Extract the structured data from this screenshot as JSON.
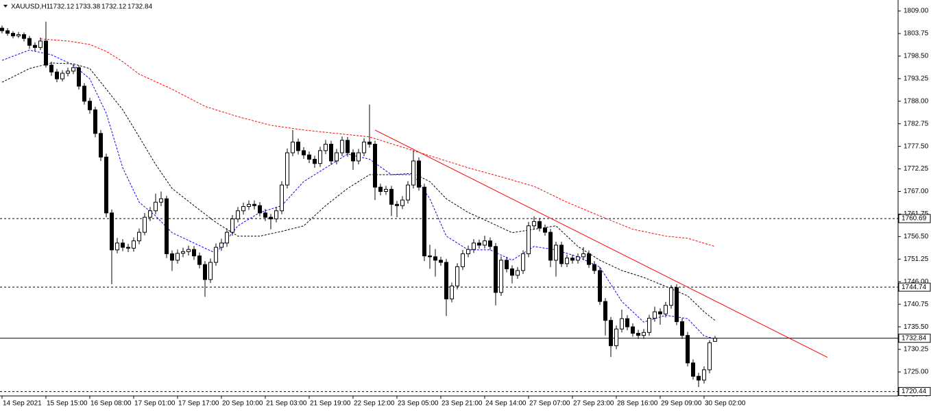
{
  "header": {
    "symbol": "XAUUSD,H1",
    "ohlc": [
      1732.12,
      1733.38,
      1732.12,
      1732.84
    ]
  },
  "chart_data": {
    "type": "candlestick",
    "categories": [
      "14 Sep 2021",
      null,
      null,
      null,
      null,
      null,
      null,
      null,
      "15 Sep 15:00",
      null,
      null,
      null,
      null,
      null,
      null,
      null,
      "16 Sep 08:00",
      null,
      null,
      null,
      null,
      null,
      null,
      null,
      "17 Sep 01:00",
      null,
      null,
      null,
      null,
      null,
      null,
      null,
      "17 Sep 17:00",
      null,
      null,
      null,
      null,
      null,
      null,
      null,
      "20 Sep 10:00",
      null,
      null,
      null,
      null,
      null,
      null,
      null,
      "21 Sep 03:00",
      null,
      null,
      null,
      null,
      null,
      null,
      null,
      "21 Sep 19:00",
      null,
      null,
      null,
      null,
      null,
      null,
      null,
      "22 Sep 12:00",
      null,
      null,
      null,
      null,
      null,
      null,
      null,
      "23 Sep 05:00",
      null,
      null,
      null,
      null,
      null,
      null,
      null,
      "23 Sep 21:00",
      null,
      null,
      null,
      null,
      null,
      null,
      null,
      "24 Sep 14:00",
      null,
      null,
      null,
      null,
      null,
      null,
      null,
      "27 Sep 07:00",
      null,
      null,
      null,
      null,
      null,
      null,
      null,
      "27 Sep 23:00",
      null,
      null,
      null,
      null,
      null,
      null,
      null,
      "28 Sep 16:00",
      null,
      null,
      null,
      null,
      null,
      null,
      null,
      "29 Sep 09:00",
      null,
      null,
      null,
      null,
      null,
      null,
      null,
      "30 Sep 02:00",
      null,
      null
    ],
    "candles": [
      [
        1805.0,
        1805.6,
        1803.8,
        1804.4
      ],
      [
        1804.4,
        1805.0,
        1803.2,
        1803.8
      ],
      [
        1803.8,
        1804.3,
        1802.6,
        1803.2
      ],
      [
        1803.2,
        1804.1,
        1802.7,
        1803.5
      ],
      [
        1803.5,
        1804.0,
        1801.9,
        1802.6
      ],
      [
        1802.6,
        1803.2,
        1800.2,
        1801.0
      ],
      [
        1801.0,
        1801.7,
        1799.6,
        1800.5
      ],
      [
        1800.5,
        1802.8,
        1799.9,
        1802.0
      ],
      [
        1802.0,
        1806.5,
        1795.8,
        1796.4
      ],
      [
        1796.4,
        1797.2,
        1793.9,
        1794.8
      ],
      [
        1794.8,
        1795.5,
        1792.4,
        1793.2
      ],
      [
        1793.2,
        1795.2,
        1792.6,
        1794.5
      ],
      [
        1794.5,
        1795.8,
        1793.8,
        1795.0
      ],
      [
        1795.0,
        1796.6,
        1794.3,
        1795.8
      ],
      [
        1795.8,
        1796.3,
        1790.7,
        1791.5
      ],
      [
        1791.5,
        1792.2,
        1787.2,
        1788.0
      ],
      [
        1788.0,
        1788.8,
        1785.1,
        1786.0
      ],
      [
        1786.0,
        1786.7,
        1779.6,
        1780.5
      ],
      [
        1780.5,
        1781.3,
        1774.1,
        1775.0
      ],
      [
        1775.0,
        1775.8,
        1761.0,
        1762.0
      ],
      [
        1762.0,
        1762.8,
        1745.4,
        1753.4
      ],
      [
        1753.4,
        1756.2,
        1752.6,
        1755.0
      ],
      [
        1755.0,
        1755.9,
        1753.1,
        1754.0
      ],
      [
        1754.0,
        1754.8,
        1752.9,
        1753.8
      ],
      [
        1753.8,
        1756.3,
        1753.0,
        1755.5
      ],
      [
        1755.5,
        1758.4,
        1754.7,
        1757.5
      ],
      [
        1757.5,
        1762.0,
        1756.8,
        1761.0
      ],
      [
        1761.0,
        1763.4,
        1760.1,
        1762.5
      ],
      [
        1762.5,
        1766.5,
        1761.7,
        1764.5
      ],
      [
        1764.5,
        1767.0,
        1763.6,
        1765.3
      ],
      [
        1765.3,
        1766.0,
        1751.5,
        1752.5
      ],
      [
        1752.5,
        1753.3,
        1748.5,
        1751.0
      ],
      [
        1751.0,
        1753.5,
        1750.2,
        1752.6
      ],
      [
        1752.6,
        1753.9,
        1751.7,
        1753.0
      ],
      [
        1753.0,
        1754.4,
        1752.1,
        1753.5
      ],
      [
        1753.5,
        1754.3,
        1751.1,
        1752.0
      ],
      [
        1752.0,
        1752.8,
        1749.1,
        1750.0
      ],
      [
        1750.0,
        1750.8,
        1742.5,
        1746.5
      ],
      [
        1746.5,
        1751.4,
        1745.7,
        1750.5
      ],
      [
        1750.5,
        1754.9,
        1749.7,
        1754.0
      ],
      [
        1754.0,
        1756.0,
        1753.2,
        1755.0
      ],
      [
        1755.0,
        1758.4,
        1754.1,
        1757.5
      ],
      [
        1757.5,
        1761.5,
        1756.7,
        1760.6
      ],
      [
        1760.6,
        1763.4,
        1759.8,
        1762.5
      ],
      [
        1762.5,
        1764.4,
        1761.6,
        1763.5
      ],
      [
        1763.5,
        1764.9,
        1762.7,
        1764.0
      ],
      [
        1764.0,
        1764.9,
        1762.8,
        1763.7
      ],
      [
        1763.7,
        1764.5,
        1761.2,
        1762.0
      ],
      [
        1762.0,
        1762.9,
        1760.1,
        1761.0
      ],
      [
        1761.0,
        1761.8,
        1758.2,
        1760.6
      ],
      [
        1760.6,
        1763.4,
        1759.8,
        1762.5
      ],
      [
        1762.5,
        1769.4,
        1761.7,
        1768.5
      ],
      [
        1768.5,
        1777.0,
        1767.7,
        1776.0
      ],
      [
        1776.0,
        1781.3,
        1775.2,
        1778.5
      ],
      [
        1778.5,
        1779.3,
        1775.6,
        1776.5
      ],
      [
        1776.5,
        1777.3,
        1774.6,
        1775.5
      ],
      [
        1775.5,
        1776.3,
        1773.6,
        1774.5
      ],
      [
        1774.5,
        1775.3,
        1772.5,
        1773.5
      ],
      [
        1773.5,
        1777.4,
        1772.7,
        1776.5
      ],
      [
        1776.5,
        1779.0,
        1775.7,
        1778.0
      ],
      [
        1778.0,
        1778.8,
        1773.2,
        1774.1
      ],
      [
        1774.1,
        1776.9,
        1773.3,
        1776.0
      ],
      [
        1776.0,
        1779.8,
        1775.2,
        1778.9
      ],
      [
        1778.9,
        1779.7,
        1775.1,
        1776.0
      ],
      [
        1776.0,
        1776.8,
        1772.0,
        1774.1
      ],
      [
        1774.1,
        1776.9,
        1773.3,
        1776.0
      ],
      [
        1776.0,
        1779.4,
        1775.2,
        1778.5
      ],
      [
        1778.5,
        1787.2,
        1777.2,
        1778.0
      ],
      [
        1778.0,
        1778.8,
        1765.0,
        1768.0
      ],
      [
        1768.0,
        1768.8,
        1766.1,
        1767.0
      ],
      [
        1767.0,
        1768.3,
        1766.2,
        1767.5
      ],
      [
        1767.5,
        1768.3,
        1761.3,
        1764.0
      ],
      [
        1764.0,
        1764.8,
        1761.0,
        1763.7
      ],
      [
        1763.7,
        1765.9,
        1762.9,
        1765.0
      ],
      [
        1765.0,
        1769.4,
        1764.2,
        1768.5
      ],
      [
        1768.5,
        1776.5,
        1767.7,
        1774.1
      ],
      [
        1774.1,
        1774.9,
        1767.2,
        1768.0
      ],
      [
        1768.0,
        1768.8,
        1750.8,
        1752.0
      ],
      [
        1752.0,
        1754.6,
        1749.0,
        1751.8
      ],
      [
        1751.8,
        1753.6,
        1747.2,
        1751.0
      ],
      [
        1751.0,
        1751.8,
        1749.7,
        1750.5
      ],
      [
        1750.5,
        1751.3,
        1738.0,
        1742.0
      ],
      [
        1742.0,
        1745.8,
        1741.2,
        1745.0
      ],
      [
        1745.0,
        1750.3,
        1744.2,
        1749.5
      ],
      [
        1749.5,
        1753.4,
        1748.7,
        1752.5
      ],
      [
        1752.5,
        1754.4,
        1751.7,
        1753.5
      ],
      [
        1753.5,
        1755.9,
        1752.7,
        1755.0
      ],
      [
        1755.0,
        1755.8,
        1753.7,
        1754.5
      ],
      [
        1754.5,
        1756.7,
        1753.7,
        1755.5
      ],
      [
        1755.5,
        1756.3,
        1753.4,
        1754.2
      ],
      [
        1754.2,
        1755.0,
        1740.5,
        1743.5
      ],
      [
        1743.5,
        1751.9,
        1742.7,
        1751.0
      ],
      [
        1751.0,
        1751.8,
        1748.2,
        1749.0
      ],
      [
        1749.0,
        1749.8,
        1745.6,
        1747.5
      ],
      [
        1747.5,
        1749.4,
        1746.7,
        1748.6
      ],
      [
        1748.6,
        1753.3,
        1747.8,
        1752.5
      ],
      [
        1752.5,
        1759.9,
        1751.7,
        1759.0
      ],
      [
        1759.0,
        1761.2,
        1758.2,
        1760.0
      ],
      [
        1760.0,
        1760.8,
        1757.7,
        1758.5
      ],
      [
        1758.5,
        1759.3,
        1756.7,
        1757.5
      ],
      [
        1757.5,
        1758.3,
        1749.4,
        1751.0
      ],
      [
        1751.0,
        1755.3,
        1747.2,
        1754.5
      ],
      [
        1754.5,
        1755.3,
        1749.4,
        1750.2
      ],
      [
        1750.2,
        1752.3,
        1749.4,
        1751.5
      ],
      [
        1751.5,
        1752.3,
        1750.2,
        1751.0
      ],
      [
        1751.0,
        1752.6,
        1750.2,
        1751.8
      ],
      [
        1751.8,
        1754.0,
        1751.0,
        1752.5
      ],
      [
        1752.5,
        1753.3,
        1749.2,
        1750.0
      ],
      [
        1750.0,
        1750.8,
        1747.8,
        1748.6
      ],
      [
        1748.6,
        1749.4,
        1740.6,
        1741.4
      ],
      [
        1741.4,
        1742.2,
        1733.5,
        1737.0
      ],
      [
        1737.0,
        1737.8,
        1728.5,
        1731.1
      ],
      [
        1731.1,
        1735.8,
        1730.3,
        1735.0
      ],
      [
        1735.0,
        1739.5,
        1734.2,
        1737.4
      ],
      [
        1737.4,
        1738.2,
        1734.7,
        1735.5
      ],
      [
        1735.5,
        1736.3,
        1733.2,
        1734.0
      ],
      [
        1734.0,
        1734.8,
        1732.7,
        1733.5
      ],
      [
        1733.5,
        1735.0,
        1732.7,
        1734.2
      ],
      [
        1734.2,
        1738.3,
        1733.4,
        1737.5
      ],
      [
        1737.5,
        1740.2,
        1736.7,
        1739.0
      ],
      [
        1739.0,
        1739.8,
        1736.0,
        1738.5
      ],
      [
        1738.5,
        1741.3,
        1737.7,
        1740.5
      ],
      [
        1740.5,
        1745.2,
        1739.7,
        1744.6
      ],
      [
        1744.6,
        1745.4,
        1735.9,
        1736.7
      ],
      [
        1736.7,
        1737.5,
        1732.7,
        1733.5
      ],
      [
        1733.5,
        1734.3,
        1726.3,
        1727.1
      ],
      [
        1727.1,
        1727.9,
        1723.2,
        1724.0
      ],
      [
        1724.0,
        1724.8,
        1721.5,
        1723.1
      ],
      [
        1723.1,
        1726.3,
        1722.3,
        1725.5
      ],
      [
        1725.5,
        1732.4,
        1724.7,
        1731.8
      ],
      [
        1732.12,
        1733.38,
        1732.12,
        1732.84
      ]
    ],
    "up_color": "#ffffff",
    "down_color": "#000000",
    "indicators": [
      {
        "color": "#0000ff",
        "x": [
          0,
          5,
          9,
          13,
          16,
          19,
          22,
          25,
          28,
          31,
          35,
          39,
          43,
          47,
          51,
          55,
          59,
          63,
          67,
          71,
          75,
          78,
          81,
          85,
          89,
          93,
          97,
          101,
          105,
          109,
          113,
          117,
          121,
          125,
          128,
          130
        ],
        "values": [
          1797.5,
          1799.9,
          1798.8,
          1796.4,
          1793.2,
          1785.2,
          1772.5,
          1764.5,
          1761.3,
          1757.4,
          1755.0,
          1752.6,
          1759.0,
          1762.1,
          1763.7,
          1769.3,
          1772.5,
          1775.7,
          1774.5,
          1770.9,
          1770.9,
          1765.3,
          1756.6,
          1753.4,
          1753.4,
          1751.0,
          1754.2,
          1753.4,
          1751.8,
          1749.4,
          1741.4,
          1736.6,
          1738.2,
          1737.4,
          1733.4,
          1732.7
        ]
      },
      {
        "color": "#000000",
        "x": [
          0,
          5,
          9,
          13,
          16,
          19,
          22,
          25,
          28,
          31,
          35,
          39,
          43,
          47,
          51,
          55,
          59,
          63,
          67,
          71,
          75,
          78,
          81,
          85,
          89,
          93,
          97,
          101,
          105,
          109,
          113,
          117,
          121,
          125,
          128,
          130
        ],
        "values": [
          1792.4,
          1795.6,
          1796.9,
          1796.7,
          1795.6,
          1790.8,
          1786.0,
          1779.7,
          1773.3,
          1767.7,
          1763.7,
          1759.8,
          1756.6,
          1756.6,
          1757.7,
          1759.0,
          1763.7,
          1767.7,
          1770.9,
          1770.9,
          1771.2,
          1769.3,
          1765.3,
          1762.1,
          1759.8,
          1757.4,
          1758.2,
          1759.0,
          1754.2,
          1751.0,
          1748.6,
          1747.0,
          1744.9,
          1742.7,
          1739.0,
          1737.0
        ]
      },
      {
        "color": "#ff0000",
        "x": [
          7,
          12,
          16,
          19,
          22,
          25,
          31,
          37,
          43,
          49,
          55,
          61,
          67,
          73,
          79,
          85,
          91,
          97,
          103,
          109,
          115,
          121,
          125,
          130
        ],
        "values": [
          1802.5,
          1802.0,
          1801.2,
          1799.6,
          1797.2,
          1794.3,
          1790.8,
          1786.8,
          1784.4,
          1782.4,
          1781.3,
          1780.5,
          1779.7,
          1777.3,
          1774.9,
          1772.5,
          1770.4,
          1768.2,
          1764.5,
          1761.3,
          1758.2,
          1756.6,
          1756.1,
          1754.2
        ]
      }
    ],
    "trendline": {
      "color": "#ff0000",
      "x": [
        68,
        150.5
      ],
      "values": [
        1781.3,
        1728.4
      ]
    },
    "levels": [
      1760.69,
      1744.74,
      1732.84,
      1720.44
    ],
    "level_styles": [
      "dashed",
      "dashed",
      "solid",
      "dashed"
    ],
    "ylim": [
      1719.42,
      1811.55
    ],
    "yticks": [
      {
        "value": 1809,
        "label": "1809.00"
      },
      1803.75,
      {
        "value": 1798.5,
        "label": "1798.50"
      },
      1793.25,
      {
        "value": 1788,
        "label": "1788.00"
      },
      1782.75,
      {
        "value": 1777.5,
        "label": "1777.50"
      },
      1772.25,
      {
        "value": 1767,
        "label": "1767.00"
      },
      1761.75,
      {
        "value": 1756.5,
        "label": "1756.50"
      },
      1751.25,
      {
        "value": 1746,
        "label": "1746.00"
      },
      1740.75,
      {
        "value": 1735.5,
        "label": "1735.50"
      },
      1730.25,
      {
        "value": 1725,
        "label": "1725.00"
      },
      1719.75
    ]
  }
}
